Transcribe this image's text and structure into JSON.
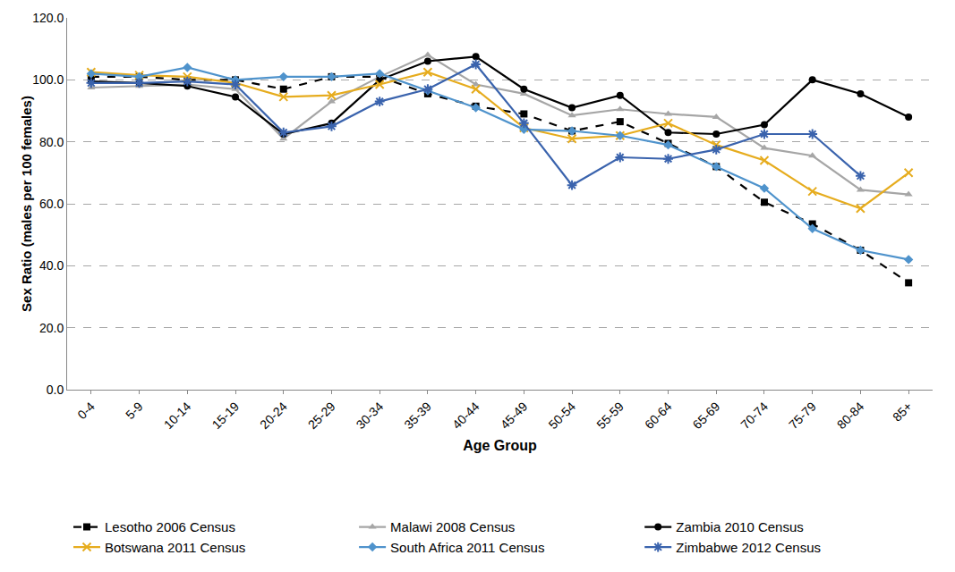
{
  "chart_data": {
    "type": "line",
    "x_label": "Age Group",
    "y_label": "Sex Ratio (males per 100 females)",
    "categories": [
      "0-4",
      "5-9",
      "10-14",
      "15-19",
      "20-24",
      "25-29",
      "30-34",
      "35-39",
      "40-44",
      "45-49",
      "50-54",
      "55-59",
      "60-64",
      "65-69",
      "70-74",
      "75-79",
      "80-84",
      "85+"
    ],
    "ylim": [
      0,
      120
    ],
    "yticks": [
      {
        "value": 0,
        "label": "0.0"
      },
      {
        "value": 20,
        "label": "20.0"
      },
      {
        "value": 40,
        "label": "40.0"
      },
      {
        "value": 60,
        "label": "60.0"
      },
      {
        "value": 80,
        "label": "80.0"
      },
      {
        "value": 100,
        "label": "100.0"
      },
      {
        "value": 120,
        "label": "120.0"
      }
    ],
    "grid": true,
    "legend": "bottom",
    "series": [
      {
        "name": "Lesotho 2006 Census",
        "color": "#000000",
        "marker": "square",
        "line_style": "dash",
        "values": [
          101,
          101,
          100,
          100,
          97,
          101,
          101,
          95.5,
          91.5,
          89,
          83.5,
          86.5,
          79.5,
          72,
          60.5,
          53.5,
          45,
          34.5
        ]
      },
      {
        "name": "Malawi 2008 Census",
        "color": "#a6a6a6",
        "marker": "triangle-up",
        "line_style": "solid",
        "values": [
          97.5,
          98,
          98.5,
          97,
          81,
          93,
          101,
          108,
          98.5,
          95.5,
          88.5,
          90.5,
          89,
          88,
          78,
          75.5,
          64.5,
          63
        ]
      },
      {
        "name": "Zambia 2010 Census",
        "color": "#000000",
        "marker": "circle",
        "line_style": "solid",
        "values": [
          99.5,
          99,
          98,
          94.5,
          82.5,
          86,
          100,
          106,
          107.5,
          97,
          91,
          95,
          83,
          82.5,
          85.5,
          100,
          95.5,
          88
        ]
      },
      {
        "name": "Botswana 2011 Census",
        "color": "#e6ac1e",
        "marker": "x",
        "line_style": "solid",
        "values": [
          102.5,
          101.5,
          101,
          99,
          94.5,
          95,
          98.5,
          102.5,
          97,
          84.5,
          81,
          82,
          86,
          79,
          74,
          64,
          58.5,
          70
        ]
      },
      {
        "name": "South Africa 2011 Census",
        "color": "#4f93cc",
        "marker": "diamond",
        "line_style": "solid",
        "values": [
          102,
          101,
          104,
          100,
          101,
          101,
          102,
          96.5,
          91,
          84,
          83.5,
          82,
          79,
          72,
          65,
          52,
          45,
          42
        ]
      },
      {
        "name": "Zimbabwe 2012 Census",
        "color": "#3a63ad",
        "marker": "asterisk",
        "line_style": "solid",
        "values": [
          99,
          99,
          99.5,
          98.5,
          83,
          85,
          93,
          97,
          105,
          86,
          66,
          75,
          74.5,
          77.5,
          82.5,
          82.5,
          69,
          null
        ]
      }
    ]
  }
}
